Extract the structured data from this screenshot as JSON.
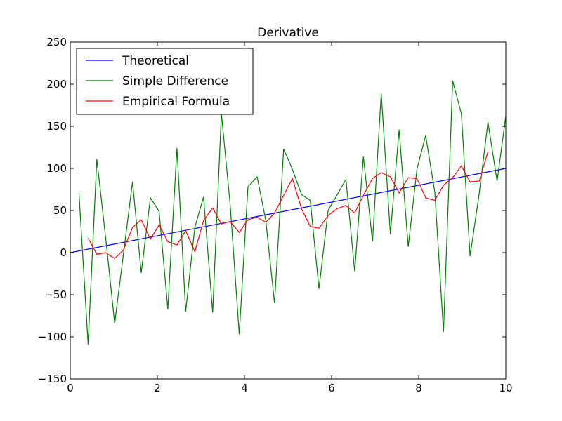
{
  "chart_data": {
    "type": "line",
    "title": "Derivative",
    "xlabel": "",
    "ylabel": "",
    "xlim": [
      0,
      10
    ],
    "ylim": [
      -150,
      250
    ],
    "xticks": [
      0,
      2,
      4,
      6,
      8,
      10
    ],
    "yticks": [
      -150,
      -100,
      -50,
      0,
      50,
      100,
      150,
      200,
      250
    ],
    "xtick_labels": [
      "0",
      "2",
      "4",
      "6",
      "8",
      "10"
    ],
    "ytick_labels": [
      "−150",
      "−100",
      "−50",
      "0",
      "50",
      "100",
      "150",
      "200",
      "250"
    ],
    "grid": false,
    "legend_position": "top-left",
    "series": [
      {
        "name": "Theoretical",
        "color": "#0000ff",
        "x": [
          0,
          10
        ],
        "y": [
          0,
          100
        ]
      },
      {
        "name": "Simple Difference",
        "color": "#008000",
        "x": [
          0.2,
          0.41,
          0.61,
          0.81,
          1.02,
          1.22,
          1.43,
          1.63,
          1.84,
          2.04,
          2.24,
          2.45,
          2.65,
          2.86,
          3.06,
          3.27,
          3.47,
          3.67,
          3.88,
          4.08,
          4.29,
          4.49,
          4.69,
          4.9,
          5.1,
          5.31,
          5.51,
          5.71,
          5.92,
          6.12,
          6.33,
          6.53,
          6.73,
          6.94,
          7.14,
          7.35,
          7.55,
          7.76,
          7.96,
          8.16,
          8.37,
          8.57,
          8.78,
          8.98,
          9.18,
          9.39,
          9.59,
          9.8,
          10.0
        ],
        "y": [
          71,
          -109,
          111,
          19,
          -84,
          -2,
          84,
          -24,
          65,
          49,
          -67,
          124,
          -70,
          30,
          66,
          -71,
          165,
          58,
          -97,
          78,
          90,
          38,
          -60,
          123,
          99,
          69,
          62,
          -43,
          50,
          68,
          87,
          -22,
          114,
          13,
          189,
          22,
          146,
          7,
          99,
          139,
          72,
          -94,
          204,
          165,
          -4,
          70,
          155,
          85,
          162
        ]
      },
      {
        "name": "Empirical Formula",
        "color": "#ff0000",
        "x": [
          0.41,
          0.61,
          0.81,
          1.02,
          1.22,
          1.43,
          1.63,
          1.84,
          2.04,
          2.24,
          2.45,
          2.65,
          2.86,
          3.06,
          3.27,
          3.47,
          3.67,
          3.88,
          4.08,
          4.29,
          4.49,
          4.69,
          4.9,
          5.1,
          5.31,
          5.51,
          5.71,
          5.92,
          6.12,
          6.33,
          6.53,
          6.73,
          6.94,
          7.14,
          7.35,
          7.55,
          7.76,
          7.96,
          8.16,
          8.37,
          8.57,
          8.78,
          8.98,
          9.18,
          9.39,
          9.59
        ],
        "y": [
          17,
          -2,
          0,
          -7,
          3,
          30,
          39,
          16,
          33,
          13,
          9,
          26,
          1,
          38,
          53,
          34,
          37,
          24,
          39,
          42,
          36,
          47,
          68,
          88,
          52,
          31,
          29,
          44,
          52,
          56,
          47,
          68,
          88,
          95,
          90,
          71,
          89,
          88,
          65,
          62,
          80,
          89,
          103,
          84,
          85,
          120
        ]
      }
    ]
  }
}
